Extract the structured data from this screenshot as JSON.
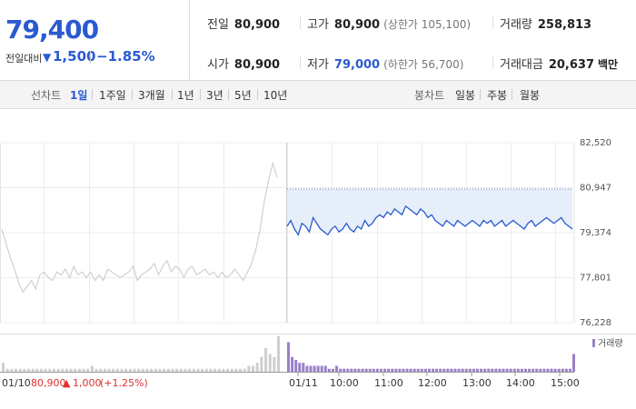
{
  "quote": {
    "price": "79,400",
    "diff_label": "전일대비",
    "diff_arrow": "▼",
    "diff_value": "1,500",
    "diff_pct": "−1.85%",
    "prev_close": {
      "label": "전일",
      "value": "80,900"
    },
    "high": {
      "label": "고가",
      "value": "80,900",
      "sub": "(상한가 105,100)"
    },
    "volume": {
      "label": "거래량",
      "value": "258,813"
    },
    "open": {
      "label": "시가",
      "value": "80,900"
    },
    "low": {
      "label": "저가",
      "value": "79,000",
      "sub": "(하한가 56,700)"
    },
    "turnover": {
      "label": "거래대금",
      "value": "20,637",
      "unit": "백만"
    }
  },
  "line_tabs": {
    "label": "선차트",
    "items": [
      "1일",
      "1주일",
      "3개월",
      "1년",
      "3년",
      "5년",
      "10년"
    ],
    "active": "1일"
  },
  "candle_tabs": {
    "label": "봉차트",
    "items": [
      "일봉",
      "주봉",
      "월봉"
    ]
  },
  "colors": {
    "accent": "#2a5ad0",
    "up": "#e03030",
    "prev_line": "#c8c8c8",
    "fill": "#e6eefa",
    "volume": "#9a80c8"
  },
  "chart_data": {
    "type": "line",
    "y_ticks": [
      "82,520",
      "80,947",
      "79,374",
      "77,801",
      "76,228"
    ],
    "ylim": [
      76228,
      82520
    ],
    "reference_price": 80900,
    "volume_legend": "거래량",
    "prev_day_label": {
      "date": "01/10",
      "close": "80,900",
      "arrow": "▲",
      "change": "1,000",
      "pct": "(+1.25%)"
    },
    "x_ticks": [
      "01/11",
      "10:00",
      "11:00",
      "12:00",
      "13:00",
      "14:00",
      "15:00"
    ],
    "prev_day_series": [
      79500,
      79000,
      78500,
      78100,
      77600,
      77300,
      77500,
      77700,
      77400,
      77900,
      78000,
      77800,
      77700,
      78000,
      77900,
      78100,
      77800,
      78200,
      77900,
      78000,
      77800,
      78000,
      77700,
      77900,
      77700,
      78100,
      78000,
      77900,
      77800,
      77900,
      78000,
      78200,
      77700,
      77900,
      78000,
      78100,
      78300,
      77900,
      78200,
      78400,
      78000,
      78200,
      78100,
      77800,
      78100,
      78200,
      77900,
      78000,
      78100,
      77900,
      78000,
      77800,
      78000,
      77800,
      77900,
      78100,
      77900,
      77700,
      78000,
      78300,
      78800,
      79500,
      80500,
      81200,
      81800,
      81300
    ],
    "today_series": [
      79600,
      79800,
      79500,
      79300,
      79700,
      79600,
      79400,
      79900,
      79700,
      79500,
      79400,
      79300,
      79500,
      79600,
      79400,
      79500,
      79700,
      79500,
      79400,
      79600,
      79500,
      79800,
      79600,
      79700,
      79900,
      80000,
      79900,
      80100,
      80000,
      80200,
      80100,
      80000,
      80300,
      80200,
      80100,
      80000,
      80200,
      80100,
      79900,
      80000,
      79800,
      79700,
      79600,
      79800,
      79700,
      79600,
      79800,
      79700,
      79600,
      79700,
      79800,
      79700,
      79600,
      79800,
      79700,
      79800,
      79600,
      79700,
      79800,
      79600,
      79700,
      79800,
      79700,
      79600,
      79500,
      79700,
      79800,
      79600,
      79700,
      79800,
      79900,
      79800,
      79700,
      79800,
      79900,
      79700,
      79600,
      79500
    ],
    "prev_day_volume": [
      3,
      1,
      1,
      1,
      1,
      1,
      1,
      1,
      1,
      1,
      1,
      1,
      1,
      1,
      1,
      1,
      1,
      1,
      1,
      1,
      1,
      2,
      1,
      1,
      1,
      1,
      1,
      1,
      1,
      1,
      1,
      1,
      1,
      1,
      1,
      1,
      1,
      1,
      1,
      1,
      1,
      1,
      1,
      1,
      1,
      1,
      1,
      1,
      1,
      1,
      1,
      1,
      1,
      1,
      1,
      1,
      1,
      1,
      2,
      2,
      3,
      5,
      8,
      6,
      5,
      12
    ],
    "today_volume": [
      10,
      5,
      4,
      3,
      3,
      2,
      2,
      2,
      2,
      2,
      2,
      1,
      1,
      2,
      1,
      1,
      1,
      1,
      1,
      1,
      1,
      1,
      1,
      1,
      1,
      1,
      1,
      1,
      1,
      1,
      1,
      1,
      1,
      1,
      1,
      1,
      1,
      1,
      1,
      1,
      1,
      1,
      1,
      1,
      1,
      1,
      1,
      1,
      1,
      1,
      1,
      1,
      1,
      1,
      1,
      1,
      1,
      1,
      1,
      1,
      1,
      1,
      1,
      1,
      1,
      1,
      1,
      1,
      1,
      1,
      1,
      1,
      1,
      1,
      1,
      1,
      1,
      6
    ]
  }
}
